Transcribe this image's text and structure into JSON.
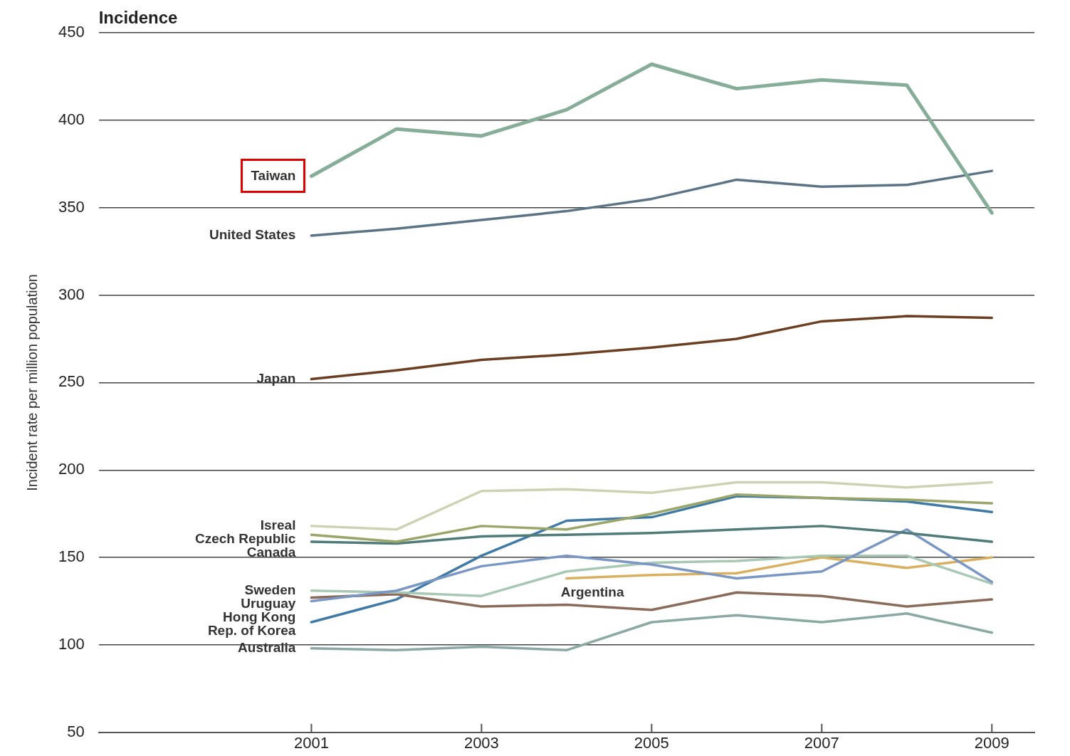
{
  "chart_data": {
    "type": "line",
    "title": "Incidence",
    "ylabel": "Incident rate per million population",
    "x": [
      2001,
      2002,
      2003,
      2004,
      2005,
      2006,
      2007,
      2008,
      2009
    ],
    "xlim": [
      1998.5,
      2009.5
    ],
    "xticks": [
      2001,
      2003,
      2005,
      2007,
      2009
    ],
    "ylim": [
      50,
      450
    ],
    "yticks": [
      50,
      100,
      150,
      200,
      250,
      300,
      350,
      400,
      450
    ],
    "grid": "y",
    "legend": false,
    "marker": "none",
    "line_style": "solid",
    "series": [
      {
        "name": "Taiwan",
        "color": "#86ad98",
        "values": [
          368,
          395,
          391,
          406,
          432,
          418,
          423,
          420,
          347
        ]
      },
      {
        "name": "United States",
        "color": "#5a7486",
        "values": [
          334,
          338,
          343,
          348,
          355,
          366,
          362,
          363,
          371
        ]
      },
      {
        "name": "Japan",
        "color": "#6b3e22",
        "values": [
          252,
          257,
          263,
          266,
          270,
          275,
          285,
          288,
          287
        ]
      },
      {
        "name": "Isreal",
        "color": "#cdd3b2",
        "values": [
          168,
          166,
          188,
          189,
          187,
          193,
          193,
          190,
          193
        ]
      },
      {
        "name": "Czech Republic",
        "color": "#9aa56a",
        "values": [
          163,
          159,
          168,
          166,
          175,
          186,
          184,
          183,
          181
        ]
      },
      {
        "name": "Canada",
        "color": "#4f7b78",
        "values": [
          159,
          158,
          162,
          163,
          164,
          166,
          168,
          164,
          159
        ]
      },
      {
        "name": "Hong Kong",
        "color": "#7a96c4",
        "values": [
          125,
          131,
          145,
          151,
          146,
          138,
          142,
          166,
          136
        ]
      },
      {
        "name": "Sweden",
        "color": "#a8c8b4",
        "values": [
          131,
          130,
          128,
          142,
          147,
          148,
          151,
          151,
          135
        ]
      },
      {
        "name": "Uruguay",
        "color": "#8a6a58",
        "values": [
          127,
          129,
          122,
          123,
          120,
          130,
          128,
          122,
          126
        ]
      },
      {
        "name": "Rep. of Korea",
        "color": "#3f7aa6",
        "values": [
          113,
          126,
          151,
          171,
          173,
          185,
          184,
          182,
          176
        ]
      },
      {
        "name": "Australia",
        "color": "#8aa8a4",
        "values": [
          98,
          97,
          99,
          97,
          113,
          117,
          113,
          118,
          107
        ]
      },
      {
        "name": "Argentina",
        "color": "#d9b060",
        "values": [
          null,
          null,
          null,
          138,
          140,
          141,
          150,
          144,
          150
        ]
      }
    ]
  }
}
